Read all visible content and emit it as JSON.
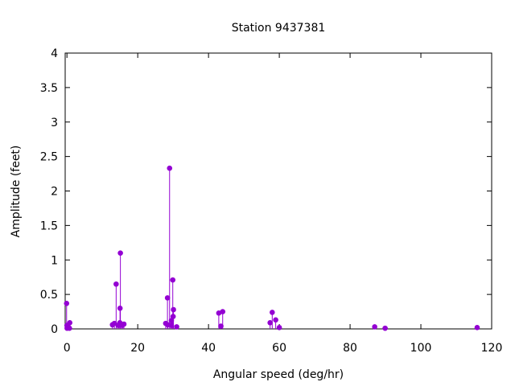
{
  "chart_data": {
    "type": "scatter",
    "style": "impulses-with-points",
    "title": "Station 9437381",
    "xlabel": "Angular speed (deg/hr)",
    "ylabel": "Amplitude (feet)",
    "xlim": [
      -0.5,
      120
    ],
    "ylim": [
      0,
      4
    ],
    "x_ticks": [
      "0",
      "20",
      "40",
      "60",
      "80",
      "100",
      "120"
    ],
    "y_ticks": [
      "0",
      "0.5",
      "1",
      "1.5",
      "2",
      "2.5",
      "3",
      "3.5",
      "4"
    ],
    "grid": false,
    "legend": "none",
    "series_color": "#9400d3",
    "points": [
      {
        "x": -0.1,
        "y": 0.37
      },
      {
        "x": 0.0,
        "y": 0.05
      },
      {
        "x": 0.04,
        "y": 0.01
      },
      {
        "x": 0.5,
        "y": 0.02
      },
      {
        "x": 0.7,
        "y": 0.01
      },
      {
        "x": 0.8,
        "y": 0.09
      },
      {
        "x": 12.85,
        "y": 0.06
      },
      {
        "x": 13.4,
        "y": 0.08
      },
      {
        "x": 13.9,
        "y": 0.65
      },
      {
        "x": 14.5,
        "y": 0.05
      },
      {
        "x": 14.96,
        "y": 0.09
      },
      {
        "x": 15.0,
        "y": 0.3
      },
      {
        "x": 15.1,
        "y": 1.1
      },
      {
        "x": 15.6,
        "y": 0.05
      },
      {
        "x": 16.1,
        "y": 0.07
      },
      {
        "x": 27.9,
        "y": 0.08
      },
      {
        "x": 28.4,
        "y": 0.45
      },
      {
        "x": 28.5,
        "y": 0.06
      },
      {
        "x": 29.0,
        "y": 2.33
      },
      {
        "x": 29.5,
        "y": 0.12
      },
      {
        "x": 29.5,
        "y": 0.05
      },
      {
        "x": 29.9,
        "y": 0.71
      },
      {
        "x": 30.0,
        "y": 0.18
      },
      {
        "x": 30.1,
        "y": 0.28
      },
      {
        "x": 31.0,
        "y": 0.03
      },
      {
        "x": 42.9,
        "y": 0.23
      },
      {
        "x": 43.5,
        "y": 0.04
      },
      {
        "x": 44.0,
        "y": 0.25
      },
      {
        "x": 57.4,
        "y": 0.09
      },
      {
        "x": 58.0,
        "y": 0.24
      },
      {
        "x": 58.98,
        "y": 0.13
      },
      {
        "x": 60.0,
        "y": 0.02
      },
      {
        "x": 86.95,
        "y": 0.03
      },
      {
        "x": 89.9,
        "y": 0.01
      },
      {
        "x": 115.9,
        "y": 0.02
      }
    ]
  }
}
